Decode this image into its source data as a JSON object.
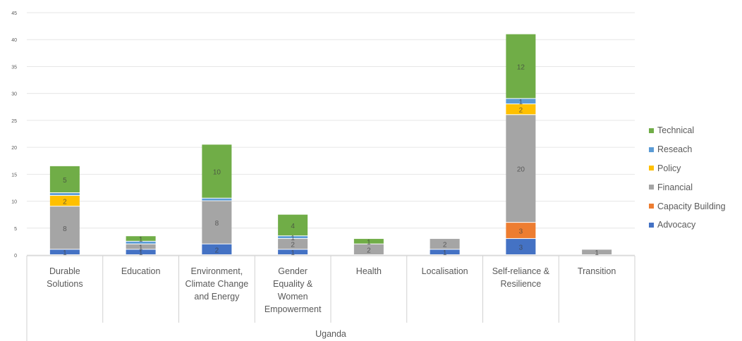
{
  "chart_data": {
    "type": "bar",
    "stacked": true,
    "group_label": "Uganda",
    "categories": [
      "Durable Solutions",
      "Education",
      "Environment, Climate Change and Energy",
      "Gender Equality & Women Empowerment",
      "Health",
      "Localisation",
      "Self-reliance & Resilience",
      "Transition"
    ],
    "category_lines": [
      [
        "Durable",
        "Solutions"
      ],
      [
        "Education"
      ],
      [
        "Environment,",
        "Climate Change",
        "and Energy"
      ],
      [
        "Gender",
        "Equality &",
        "Women",
        "Empowerment"
      ],
      [
        "Health"
      ],
      [
        "Localisation"
      ],
      [
        "Self-reliance &",
        "Resilience"
      ],
      [
        "Transition"
      ]
    ],
    "series": [
      {
        "name": "Advocacy",
        "color": "#4472c4",
        "values": [
          1,
          1,
          2,
          1,
          0,
          1,
          3,
          0
        ],
        "labels": [
          "1",
          "1",
          "2",
          "1",
          "",
          "1",
          "3",
          ""
        ]
      },
      {
        "name": "Capacity Building",
        "color": "#ed7d31",
        "values": [
          0,
          0,
          0,
          0,
          0,
          0,
          3,
          0
        ],
        "labels": [
          "",
          "",
          "",
          "",
          "",
          "",
          "3",
          ""
        ]
      },
      {
        "name": "Financial",
        "color": "#a5a5a5",
        "values": [
          8,
          1,
          8,
          2,
          2,
          2,
          20,
          1
        ],
        "labels": [
          "8",
          "1",
          "8",
          "2",
          "2",
          "2",
          "20",
          "1"
        ]
      },
      {
        "name": "Policy",
        "color": "#ffc000",
        "values": [
          2,
          0,
          0,
          0,
          0,
          0,
          2,
          0
        ],
        "labels": [
          "2",
          "",
          "",
          "",
          "",
          "",
          "2",
          ""
        ]
      },
      {
        "name": "Reseach",
        "color": "#5b9bd5",
        "values": [
          0.5,
          0.5,
          0.5,
          0.5,
          0,
          0,
          1,
          0
        ],
        "labels": [
          "",
          "",
          "",
          "1",
          "",
          "",
          "1",
          ""
        ]
      },
      {
        "name": "Technical",
        "color": "#70ad47",
        "values": [
          5,
          1,
          10,
          4,
          1,
          0,
          12,
          0
        ],
        "labels": [
          "5",
          "1",
          "10",
          "4",
          "1",
          "",
          "12",
          ""
        ]
      }
    ],
    "yticks": [
      "0",
      "5",
      "10",
      "15",
      "20",
      "25",
      "30",
      "35",
      "40",
      "45"
    ],
    "ylim": [
      0,
      45
    ],
    "xlabel": "",
    "ylabel": "",
    "title": "",
    "grid": true,
    "legend_position": "right",
    "legend_order": [
      "Technical",
      "Reseach",
      "Policy",
      "Financial",
      "Capacity Building",
      "Advocacy"
    ]
  },
  "colors": {
    "text": "#595959",
    "grid": "#e6e6e6",
    "axis": "#d0d0d0",
    "label_light": "#f2f2f2",
    "label_dark": "#404040"
  }
}
